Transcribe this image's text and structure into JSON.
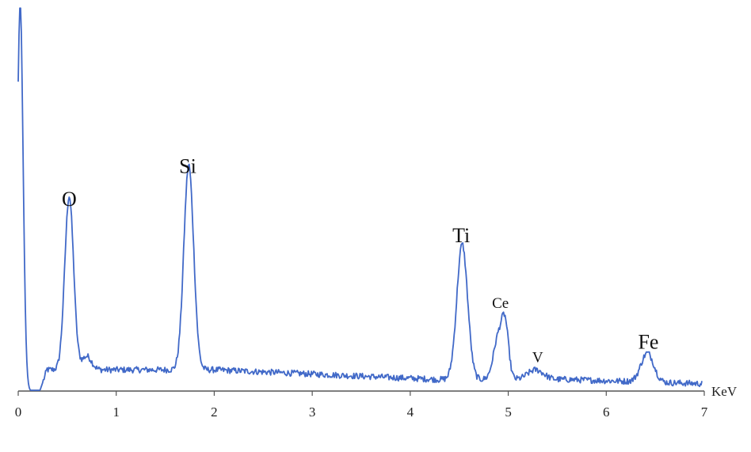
{
  "chart_data": {
    "type": "line",
    "title": "",
    "xlabel": "KeV",
    "ylabel": "",
    "xlim": [
      0,
      7
    ],
    "ylim": [
      0,
      100
    ],
    "grid": false,
    "legend": "none",
    "line_color": "#4169C8",
    "axis_color": "#555555",
    "x_ticks": [
      0,
      1,
      2,
      3,
      4,
      5,
      6,
      7
    ],
    "x_tick_labels": [
      "0",
      "1",
      "2",
      "3",
      "4",
      "5",
      "6",
      "7"
    ],
    "peaks": [
      {
        "element": "",
        "center": 0.02,
        "height": 100,
        "width": 0.03
      },
      {
        "element": "O",
        "center": 0.52,
        "height": 45,
        "width": 0.045
      },
      {
        "element": "",
        "center": 0.7,
        "height": 3.5,
        "width": 0.05
      },
      {
        "element": "Si",
        "center": 1.74,
        "height": 53,
        "width": 0.05
      },
      {
        "element": "Ti",
        "center": 4.53,
        "height": 35,
        "width": 0.055
      },
      {
        "element": "Ce",
        "center": 4.9,
        "height": 11,
        "width": 0.05
      },
      {
        "element": "",
        "center": 4.97,
        "height": 12,
        "width": 0.035
      },
      {
        "element": "V",
        "center": 5.28,
        "height": 2.5,
        "width": 0.08
      },
      {
        "element": "Fe",
        "center": 6.42,
        "height": 7.5,
        "width": 0.065
      }
    ],
    "annotations": [
      {
        "text": "O",
        "x": 0.52,
        "y": 48,
        "size": "large"
      },
      {
        "text": "Si",
        "x": 1.73,
        "y": 56.5,
        "size": "large"
      },
      {
        "text": "Ti",
        "x": 4.52,
        "y": 38.5,
        "size": "large"
      },
      {
        "text": "Ce",
        "x": 4.92,
        "y": 21.5,
        "size": "small"
      },
      {
        "text": "V",
        "x": 5.3,
        "y": 7.5,
        "size": "small"
      },
      {
        "text": "Fe",
        "x": 6.43,
        "y": 11,
        "size": "large"
      }
    ]
  }
}
